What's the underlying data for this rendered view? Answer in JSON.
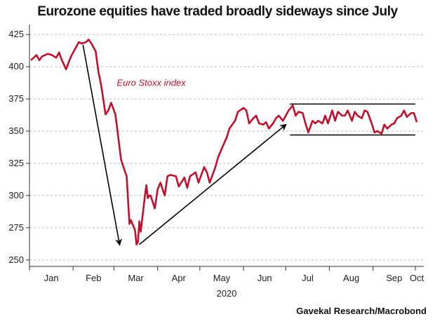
{
  "title": "Eurozone equities have traded broadly sideways since July",
  "source": "Gavekal Research/Macrobond",
  "colors": {
    "series": "#c0102c",
    "annotation": "#c0102c",
    "grid": "#bbbbbb",
    "arrow": "#000000"
  },
  "chart_data": {
    "type": "line",
    "ylim": [
      245,
      430
    ],
    "yticks": [
      250,
      275,
      300,
      325,
      350,
      375,
      400,
      425
    ],
    "x_month_labels": [
      "Jan",
      "Feb",
      "Mar",
      "Apr",
      "May",
      "Jun",
      "Jul",
      "Aug",
      "Sep",
      "Oct"
    ],
    "year_label": "2020",
    "grid": "horizontal dashed",
    "series": [
      {
        "name": "Euro Stoxx index",
        "x": [
          "2020-01-02",
          "2020-01-06",
          "2020-01-08",
          "2020-01-10",
          "2020-01-14",
          "2020-01-17",
          "2020-01-20",
          "2020-01-22",
          "2020-01-24",
          "2020-01-27",
          "2020-01-29",
          "2020-01-31",
          "2020-02-03",
          "2020-02-05",
          "2020-02-07",
          "2020-02-10",
          "2020-02-12",
          "2020-02-14",
          "2020-02-17",
          "2020-02-19",
          "2020-02-21",
          "2020-02-24",
          "2020-02-26",
          "2020-02-28",
          "2020-03-02",
          "2020-03-04",
          "2020-03-06",
          "2020-03-09",
          "2020-03-10",
          "2020-03-12",
          "2020-03-13",
          "2020-03-16",
          "2020-03-17",
          "2020-03-18",
          "2020-03-19",
          "2020-03-20",
          "2020-03-23",
          "2020-03-24",
          "2020-03-25",
          "2020-03-26",
          "2020-03-27",
          "2020-03-30",
          "2020-04-01",
          "2020-04-03",
          "2020-04-06",
          "2020-04-08",
          "2020-04-10",
          "2020-04-14",
          "2020-04-16",
          "2020-04-20",
          "2020-04-22",
          "2020-04-24",
          "2020-04-28",
          "2020-04-30",
          "2020-05-04",
          "2020-05-06",
          "2020-05-08",
          "2020-05-12",
          "2020-05-14",
          "2020-05-18",
          "2020-05-20",
          "2020-05-22",
          "2020-05-26",
          "2020-05-28",
          "2020-06-01",
          "2020-06-03",
          "2020-06-05",
          "2020-06-08",
          "2020-06-10",
          "2020-06-12",
          "2020-06-15",
          "2020-06-17",
          "2020-06-19",
          "2020-06-22",
          "2020-06-24",
          "2020-06-26",
          "2020-06-29",
          "2020-07-01",
          "2020-07-03",
          "2020-07-06",
          "2020-07-08",
          "2020-07-10",
          "2020-07-13",
          "2020-07-15",
          "2020-07-17",
          "2020-07-20",
          "2020-07-22",
          "2020-07-24",
          "2020-07-27",
          "2020-07-29",
          "2020-07-31",
          "2020-08-03",
          "2020-08-05",
          "2020-08-07",
          "2020-08-10",
          "2020-08-12",
          "2020-08-14",
          "2020-08-17",
          "2020-08-19",
          "2020-08-21",
          "2020-08-24",
          "2020-08-26",
          "2020-08-28",
          "2020-08-31",
          "2020-09-02",
          "2020-09-04",
          "2020-09-07",
          "2020-09-09",
          "2020-09-11",
          "2020-09-14",
          "2020-09-16",
          "2020-09-18",
          "2020-09-21",
          "2020-09-23",
          "2020-09-25",
          "2020-09-28",
          "2020-09-30",
          "2020-10-02"
        ],
        "y": [
          405,
          409,
          405,
          408,
          410,
          409,
          407,
          411,
          405,
          398,
          404,
          409,
          415,
          419,
          418,
          419,
          421,
          418,
          412,
          396,
          385,
          363,
          366,
          372,
          363,
          346,
          328,
          318,
          315,
          278,
          281,
          273,
          262,
          264,
          280,
          272,
          300,
          308,
          298,
          300,
          300,
          290,
          305,
          310,
          300,
          315,
          316,
          315,
          307,
          314,
          306,
          315,
          318,
          310,
          322,
          318,
          310,
          322,
          330,
          340,
          345,
          352,
          358,
          365,
          368,
          366,
          356,
          360,
          362,
          356,
          355,
          357,
          352,
          356,
          360,
          362,
          358,
          362,
          366,
          370,
          362,
          365,
          364,
          356,
          349,
          358,
          356,
          358,
          356,
          362,
          356,
          366,
          358,
          365,
          362,
          362,
          366,
          358,
          365,
          362,
          360,
          366,
          365,
          356,
          349,
          350,
          348,
          355,
          352,
          355,
          356,
          360,
          362,
          366,
          361,
          364,
          364,
          357
        ]
      }
    ],
    "annotations": [
      {
        "text": "Euro Stoxx index",
        "x": "2020-03-03",
        "y": 385
      }
    ],
    "arrows": [
      {
        "from": {
          "x": "2020-02-08",
          "y": 417
        },
        "to": {
          "x": "2020-03-05",
          "y": 262
        }
      },
      {
        "from": {
          "x": "2020-03-19",
          "y": 262
        },
        "to": {
          "x": "2020-07-01",
          "y": 355
        }
      }
    ],
    "range_lines": [
      {
        "y": 371,
        "from": "2020-07-04",
        "to": "2020-10-01"
      },
      {
        "y": 347,
        "from": "2020-07-04",
        "to": "2020-10-01"
      }
    ]
  }
}
